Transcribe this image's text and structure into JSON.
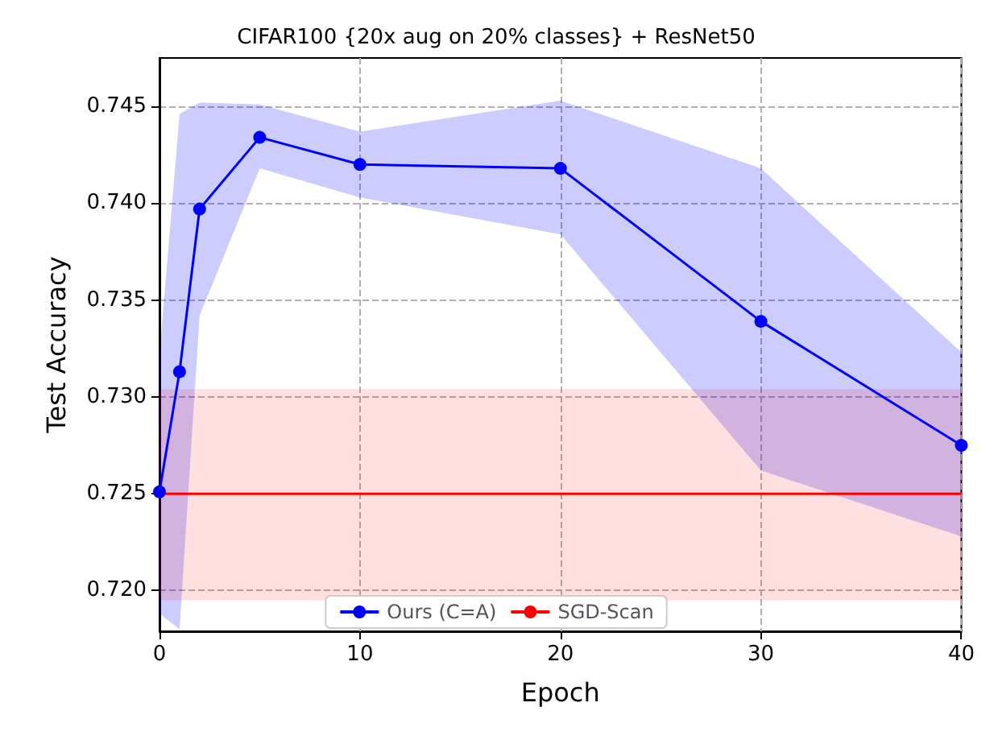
{
  "chart_data": {
    "type": "line",
    "title": "CIFAR100 {20x aug on 20% classes} + ResNet50",
    "xlabel": "Epoch",
    "ylabel": "Test Accuracy",
    "series": [
      {
        "name": "Ours (C=A)",
        "color": "#0000ff",
        "x": [
          0,
          1,
          2,
          5,
          10,
          20,
          30,
          40
        ],
        "values": [
          0.7251,
          0.7313,
          0.7397,
          0.7434,
          0.742,
          0.7418,
          0.7339,
          0.7275
        ],
        "lower": [
          0.7188,
          0.718,
          0.7342,
          0.7418,
          0.7403,
          0.7384,
          0.7262,
          0.7228
        ],
        "upper": [
          0.7322,
          0.7446,
          0.7452,
          0.7451,
          0.7437,
          0.7453,
          0.7418,
          0.7323
        ],
        "marker": "circle"
      },
      {
        "name": "SGD-Scan",
        "color": "#ff0000",
        "x": [
          0,
          40
        ],
        "values": [
          0.725,
          0.725
        ],
        "lower": [
          0.7195,
          0.7195
        ],
        "upper": [
          0.7304,
          0.7304
        ],
        "marker": "none"
      }
    ],
    "xlim": [
      0,
      40
    ],
    "xticks": [
      0,
      10,
      20,
      30,
      40
    ],
    "ylim": [
      0.7179,
      0.7475
    ],
    "yticks": [
      {
        "value": 0.72,
        "label": "0.720"
      },
      {
        "value": 0.725,
        "label": "0.725"
      },
      {
        "value": 0.73,
        "label": "0.730"
      },
      {
        "value": 0.735,
        "label": "0.735"
      },
      {
        "value": 0.74,
        "label": "0.740"
      },
      {
        "value": 0.745,
        "label": "0.745"
      }
    ],
    "grid": true,
    "legend": "bottom",
    "line_style": "solid"
  }
}
